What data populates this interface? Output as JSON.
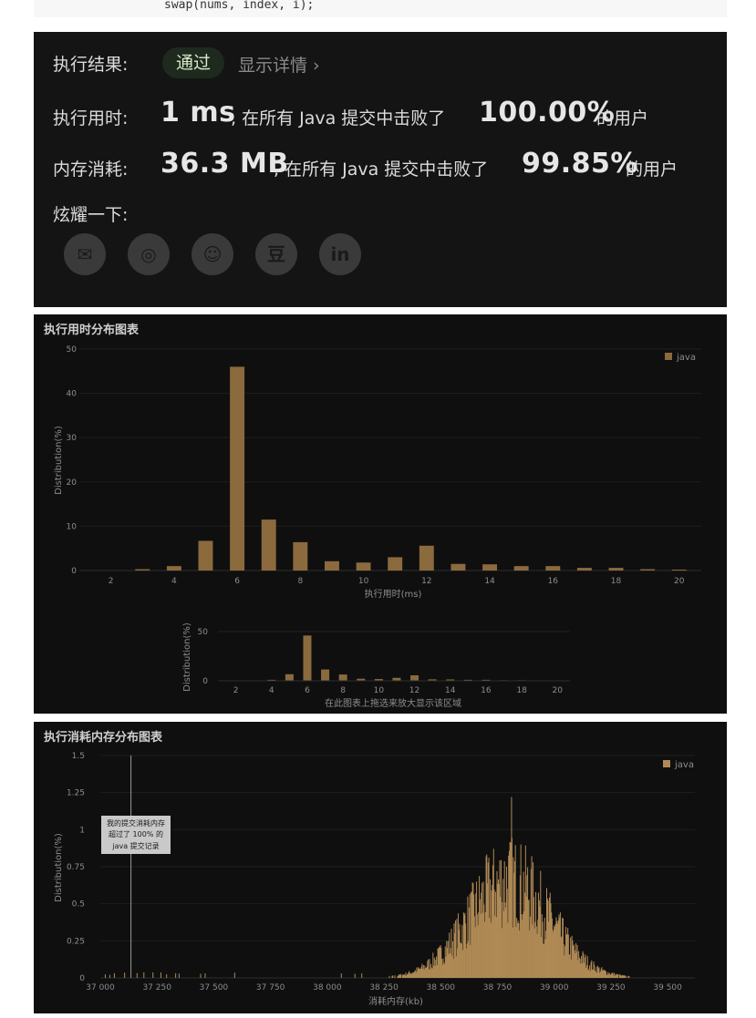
{
  "code": {
    "line": "swap(nums, index, i);"
  },
  "result": {
    "status_label": "执行结果:",
    "status_value": "通过",
    "details_label": "显示详情 ›",
    "runtime_label": "执行用时:",
    "runtime_value": "1 ms",
    "runtime_text": ", 在所有 Java 提交中击败了",
    "runtime_percent": "100.00%",
    "runtime_suffix": "的用户",
    "memory_label": "内存消耗:",
    "memory_value": "36.3 MB",
    "memory_text": ", 在所有 Java 提交中击败了",
    "memory_percent": "99.85%",
    "memory_suffix": "的用户",
    "share_label": "炫耀一下:",
    "share_icons": [
      "wechat-icon",
      "weibo-icon",
      "qq-icon",
      "douban-icon",
      "linkedin-icon"
    ],
    "share_glyphs": [
      "✉",
      "◎",
      "☺",
      "豆",
      "in"
    ]
  },
  "runtime_chart": {
    "title": "执行用时分布图表",
    "legend": "java",
    "xlabel": "执行用时(ms)",
    "ylabel": "Distribution(%)",
    "navigator_label": "在此图表上拖选来放大显示该区域",
    "navigator_ylabel": "Distribution(%)",
    "navigator_ytick": "50",
    "navigator_ytick0": "0"
  },
  "memory_chart": {
    "title": "执行消耗内存分布图表",
    "legend": "java",
    "xlabel": "消耗内存(kb)",
    "ylabel": "Distribution(%)",
    "tooltip": [
      "我的提交消耗内存",
      "超过了 100% 的",
      "java 提交记录"
    ]
  },
  "chart_data": [
    {
      "type": "bar",
      "title": "执行用时分布图表",
      "xlabel": "执行用时(ms)",
      "ylabel": "Distribution(%)",
      "color": "#8b6a3e",
      "xlim": [
        1,
        20.7
      ],
      "ylim": [
        0,
        50
      ],
      "xticks": [
        2,
        4,
        6,
        8,
        10,
        12,
        14,
        16,
        18,
        20
      ],
      "yticks": [
        0,
        10,
        20,
        30,
        40,
        50
      ],
      "series": [
        {
          "name": "java",
          "x": [
            3,
            4,
            5,
            6,
            7,
            8,
            9,
            10,
            11,
            12,
            13,
            14,
            15,
            16,
            17,
            18,
            19,
            20
          ],
          "values": [
            0.3,
            1.0,
            6.7,
            46.0,
            11.5,
            6.4,
            2.1,
            1.8,
            3.0,
            5.6,
            1.5,
            1.4,
            1.0,
            1.0,
            0.6,
            0.6,
            0.3,
            0.2
          ]
        }
      ]
    },
    {
      "type": "bar",
      "title": "执行消耗内存分布图表",
      "xlabel": "消耗内存(kb)",
      "ylabel": "Distribution(%)",
      "color": "#b08a55",
      "xlim": [
        37000,
        39620
      ],
      "ylim": [
        0,
        1.5
      ],
      "xticks": [
        37000,
        37250,
        37500,
        37750,
        38000,
        38250,
        38500,
        38750,
        39000,
        39250,
        39500
      ],
      "xtick_labels": [
        "37 000",
        "37 250",
        "37 500",
        "37 750",
        "38 000",
        "38 250",
        "38 500",
        "38 750",
        "39 000",
        "39 250",
        "39 500"
      ],
      "yticks": [
        0,
        0.25,
        0.5,
        0.75,
        1,
        1.25,
        1.5
      ],
      "ytick_labels": [
        "0",
        "0.25",
        "0.5",
        "0.75",
        "1",
        "1.25",
        "1.5"
      ],
      "marker_x": 37135,
      "series": [
        {
          "name": "java",
          "distribution": "approximately normal",
          "peak_x": 38810,
          "peak_value": 1.22,
          "mean": 38800,
          "sd": 180,
          "range": [
            38200,
            39620
          ]
        }
      ]
    }
  ]
}
